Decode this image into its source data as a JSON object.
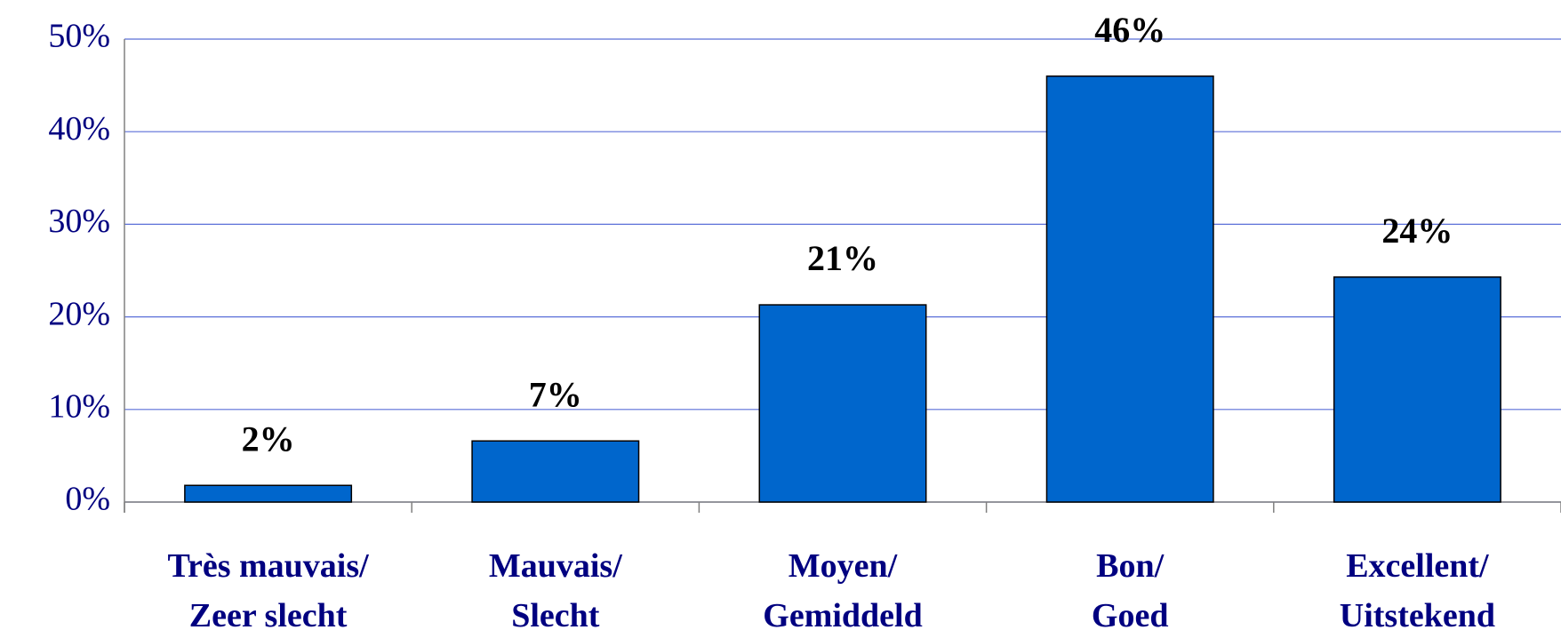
{
  "chart_data": {
    "type": "bar",
    "categories": [
      [
        "Très mauvais/",
        "Zeer slecht"
      ],
      [
        "Mauvais/",
        "Slecht"
      ],
      [
        "Moyen/",
        "Gemiddeld"
      ],
      [
        "Bon/",
        "Goed"
      ],
      [
        "Excellent/",
        "Uitstekend"
      ]
    ],
    "values": [
      1.8,
      6.6,
      21.3,
      46.0,
      24.3
    ],
    "value_labels": [
      "2%",
      "7%",
      "21%",
      "46%",
      "24%"
    ],
    "color": "#0066cc",
    "ylim": [
      0,
      50
    ],
    "yticks": [
      {
        "value": 0,
        "label": "0%"
      },
      {
        "value": 10,
        "label": "10%"
      },
      {
        "value": 20,
        "label": "20%"
      },
      {
        "value": 30,
        "label": "30%"
      },
      {
        "value": 40,
        "label": "40%"
      },
      {
        "value": 50,
        "label": "50%"
      }
    ],
    "grid": true
  }
}
